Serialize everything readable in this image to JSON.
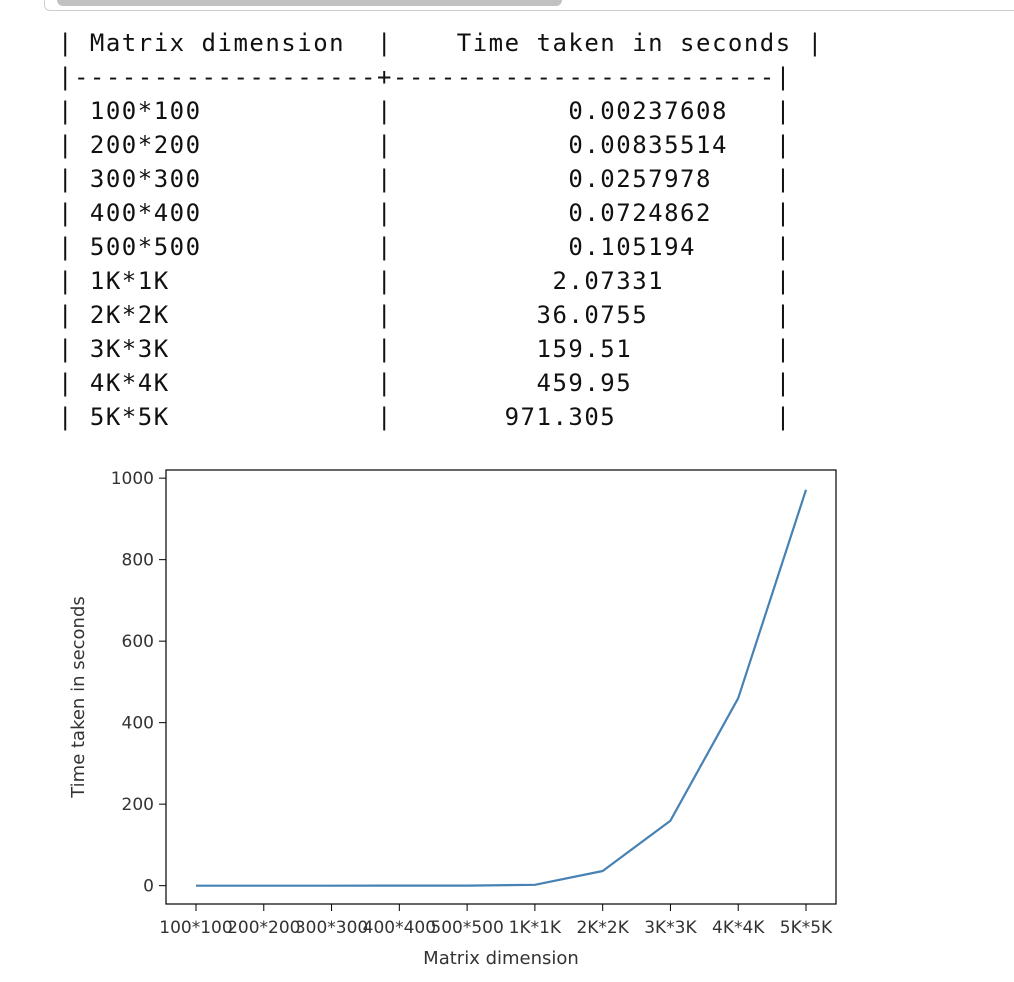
{
  "table": {
    "header": {
      "dimension": "Matrix dimension",
      "time": "Time taken in seconds"
    },
    "rows": [
      {
        "dimension": "100*100",
        "time": "0.00237608"
      },
      {
        "dimension": "200*200",
        "time": "0.00835514"
      },
      {
        "dimension": "300*300",
        "time": "0.0257978"
      },
      {
        "dimension": "400*400",
        "time": "0.0724862"
      },
      {
        "dimension": "500*500",
        "time": "0.105194"
      },
      {
        "dimension": "1K*1K",
        "time": "2.07331"
      },
      {
        "dimension": "2K*2K",
        "time": "36.0755"
      },
      {
        "dimension": "3K*3K",
        "time": "159.51"
      },
      {
        "dimension": "4K*4K",
        "time": "459.95"
      },
      {
        "dimension": "5K*5K",
        "time": "971.305"
      }
    ]
  },
  "chart_data": {
    "type": "line",
    "title": "",
    "xlabel": "Matrix dimension",
    "ylabel": "Time taken in seconds",
    "categories": [
      "100*100",
      "200*200",
      "300*300",
      "400*400",
      "500*500",
      "1K*1K",
      "2K*2K",
      "3K*3K",
      "4K*4K",
      "5K*5K"
    ],
    "series": [
      {
        "values": [
          0.00237608,
          0.00835514,
          0.0257978,
          0.0724862,
          0.105194,
          2.07331,
          36.0755,
          159.51,
          459.95,
          971.305
        ]
      }
    ],
    "ylim": [
      -45,
      1020
    ],
    "yticks": [
      0,
      200,
      400,
      600,
      800,
      1000
    ],
    "grid": false,
    "legend": "none",
    "line_color": "#4682b4"
  }
}
